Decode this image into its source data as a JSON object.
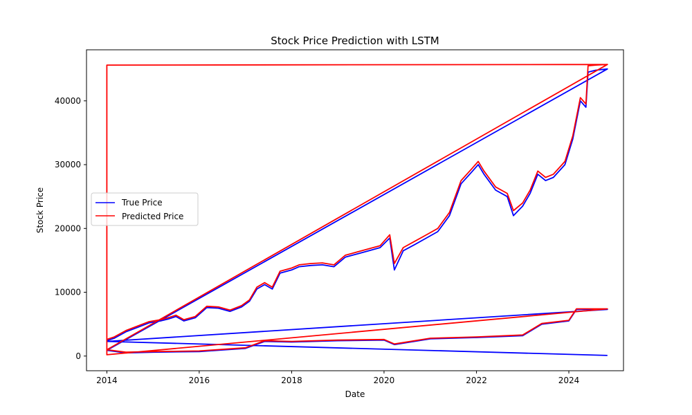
{
  "chart_data": {
    "type": "line",
    "title": "Stock Price Prediction with LSTM",
    "xlabel": "Date",
    "ylabel": "Stock Price",
    "xlim": [
      "2013-07-24",
      "2025-03-08"
    ],
    "ylim": [
      -2300,
      48000
    ],
    "x_ticks": [
      "2014",
      "2016",
      "2018",
      "2020",
      "2022",
      "2024"
    ],
    "y_ticks": [
      0,
      10000,
      20000,
      30000,
      40000
    ],
    "grid": false,
    "legend_position": "center-left",
    "series": [
      {
        "name": "True Price",
        "color": "#0000ff",
        "x": [
          "2014-01-01",
          "2014-01-15",
          "2014-03-01",
          "2014-06-01",
          "2014-09-01",
          "2014-12-01",
          "2015-03-01",
          "2015-05-01",
          "2015-07-01",
          "2015-09-01",
          "2015-12-01",
          "2016-03-01",
          "2016-06-01",
          "2016-09-01",
          "2016-12-01",
          "2017-02-01",
          "2017-04-01",
          "2017-06-01",
          "2017-08-01",
          "2017-10-01",
          "2018-01-01",
          "2018-03-01",
          "2018-06-01",
          "2018-09-01",
          "2018-12-01",
          "2019-03-01",
          "2019-06-01",
          "2019-09-01",
          "2019-12-01",
          "2020-02-15",
          "2020-03-23",
          "2020-06-01",
          "2020-09-01",
          "2020-12-01",
          "2021-03-01",
          "2021-06-01",
          "2021-09-01",
          "2021-12-01",
          "2022-01-15",
          "2022-03-01",
          "2022-06-01",
          "2022-09-01",
          "2022-10-20",
          "2023-01-01",
          "2023-03-01",
          "2023-05-01",
          "2023-07-01",
          "2023-09-01",
          "2023-12-01",
          "2024-02-01",
          "2024-04-01",
          "2024-05-15",
          "2024-06-01",
          "2024-08-01",
          "2024-11-01",
          "2014-01-01",
          "2014-06-01",
          "2015-01-01",
          "2016-01-01",
          "2017-01-01",
          "2017-06-01",
          "2018-01-01",
          "2019-01-01",
          "2020-01-01",
          "2020-03-23",
          "2021-01-01",
          "2022-01-01",
          "2023-01-01",
          "2023-06-01",
          "2024-01-01",
          "2024-03-01",
          "2024-11-01",
          "2014-01-01",
          "2024-11-01"
        ],
        "values": [
          2400,
          2500,
          2800,
          3800,
          4500,
          5200,
          5500,
          5800,
          6200,
          5500,
          6000,
          7600,
          7500,
          7000,
          7700,
          8600,
          10500,
          11200,
          10500,
          13000,
          13500,
          14000,
          14200,
          14300,
          14000,
          15500,
          16000,
          16500,
          17000,
          18500,
          13500,
          16500,
          17500,
          18500,
          19500,
          22000,
          27000,
          29000,
          30000,
          28500,
          26000,
          25000,
          22000,
          23500,
          25500,
          28500,
          27500,
          28000,
          30000,
          34000,
          40000,
          39000,
          44500,
          44800,
          45000,
          900,
          500,
          600,
          700,
          1200,
          2300,
          2200,
          2400,
          2500,
          1800,
          2700,
          2900,
          3200,
          5000,
          5500,
          7300,
          7300,
          2300,
          100
        ],
        "note_values": []
      },
      {
        "name": "Predicted Price",
        "color": "#ff0000",
        "x": [
          "2014-01-01",
          "2014-01-15",
          "2014-03-01",
          "2014-06-01",
          "2014-09-01",
          "2014-12-01",
          "2015-03-01",
          "2015-05-01",
          "2015-07-01",
          "2015-09-01",
          "2015-12-01",
          "2016-03-01",
          "2016-06-01",
          "2016-09-01",
          "2016-12-01",
          "2017-02-01",
          "2017-04-01",
          "2017-06-01",
          "2017-08-01",
          "2017-10-01",
          "2018-01-01",
          "2018-03-01",
          "2018-06-01",
          "2018-09-01",
          "2018-12-01",
          "2019-03-01",
          "2019-06-01",
          "2019-09-01",
          "2019-12-01",
          "2020-02-15",
          "2020-03-23",
          "2020-06-01",
          "2020-09-01",
          "2020-12-01",
          "2021-03-01",
          "2021-06-01",
          "2021-09-01",
          "2021-12-01",
          "2022-01-15",
          "2022-03-01",
          "2022-06-01",
          "2022-09-01",
          "2022-10-20",
          "2023-01-01",
          "2023-03-01",
          "2023-05-01",
          "2023-07-01",
          "2023-09-01",
          "2023-12-01",
          "2024-02-01",
          "2024-04-01",
          "2024-05-15",
          "2024-06-01",
          "2024-08-01",
          "2024-11-01",
          "2014-01-01",
          "2014-06-01",
          "2015-01-01",
          "2016-01-01",
          "2017-01-01",
          "2017-06-01",
          "2018-01-01",
          "2019-01-01",
          "2020-01-01",
          "2020-03-23",
          "2021-01-01",
          "2022-01-01",
          "2023-01-01",
          "2023-06-01",
          "2024-01-01",
          "2024-03-01",
          "2024-11-01",
          "2014-01-01",
          "2014-01-01",
          "2024-11-01"
        ],
        "values": [
          2600,
          2700,
          3000,
          4000,
          4700,
          5400,
          5700,
          6000,
          6400,
          5700,
          6200,
          7800,
          7700,
          7200,
          7900,
          8800,
          10800,
          11500,
          10800,
          13300,
          13800,
          14300,
          14500,
          14600,
          14300,
          15800,
          16300,
          16800,
          17300,
          19000,
          14500,
          17000,
          18000,
          19000,
          20000,
          22500,
          27500,
          29500,
          30500,
          29000,
          26500,
          25500,
          22800,
          24000,
          26000,
          29000,
          28000,
          28500,
          30500,
          34500,
          40500,
          39500,
          45500,
          45600,
          45700,
          1000,
          600,
          700,
          800,
          1300,
          2400,
          2300,
          2500,
          2600,
          1900,
          2800,
          3000,
          3300,
          5100,
          5600,
          7400,
          7400,
          200,
          45600,
          45700
        ]
      }
    ]
  }
}
